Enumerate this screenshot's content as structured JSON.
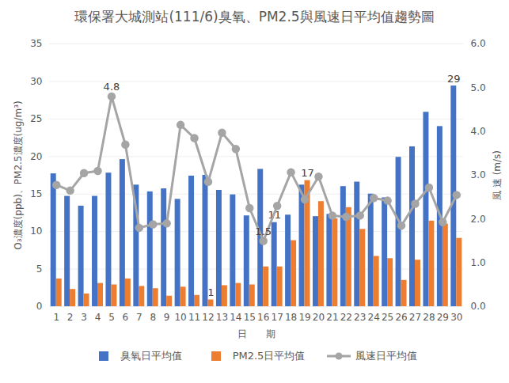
{
  "chart_data": {
    "type": "bar",
    "title": "環保署大城測站(111/6)臭氧、PM2.5與風速日平均值趨勢圖",
    "x_label": "日　　期",
    "y_label": "O₃濃度(ppb)、PM2.5濃度(ug/m³)",
    "y2_label": "風 速 (m/s)",
    "categories": [
      "1",
      "2",
      "3",
      "4",
      "5",
      "6",
      "7",
      "8",
      "9",
      "10",
      "11",
      "12",
      "13",
      "14",
      "15",
      "16",
      "17",
      "18",
      "19",
      "20",
      "21",
      "22",
      "23",
      "24",
      "25",
      "26",
      "27",
      "28",
      "29",
      "30"
    ],
    "ylim": [
      0,
      35
    ],
    "yticks": [
      0,
      5,
      10,
      15,
      20,
      25,
      30,
      35
    ],
    "y2lim": [
      0,
      6
    ],
    "y2ticks": [
      {
        "value": 0,
        "label": "0.0"
      },
      {
        "value": 1,
        "label": "1.0"
      },
      {
        "value": 2,
        "label": "2.0"
      },
      {
        "value": 3,
        "label": "3.0"
      },
      {
        "value": 4,
        "label": "4.0"
      },
      {
        "value": 5,
        "label": "5.0"
      },
      {
        "value": 6,
        "label": "6.0"
      }
    ],
    "grid": true,
    "legend": "bottom",
    "series": [
      {
        "name": "臭氧日平均值",
        "type": "bar",
        "color": "#4472c4",
        "values": [
          17.7,
          14.7,
          13.4,
          14.7,
          17.8,
          19.6,
          16.2,
          15.3,
          15.7,
          14.3,
          17.4,
          17.5,
          15.5,
          14.9,
          12.1,
          18.3,
          11.2,
          12.2,
          16.2,
          12.0,
          12.3,
          16.0,
          16.6,
          15.0,
          14.5,
          19.9,
          21.3,
          25.9,
          24.0,
          29.4
        ],
        "value_labels": [
          null,
          null,
          null,
          null,
          null,
          null,
          null,
          null,
          null,
          null,
          null,
          null,
          null,
          null,
          null,
          null,
          "11",
          null,
          null,
          null,
          null,
          null,
          null,
          null,
          null,
          null,
          null,
          null,
          null,
          "29"
        ]
      },
      {
        "name": "PM2.5日平均值",
        "type": "bar",
        "color": "#ed7d31",
        "values": [
          3.7,
          2.3,
          1.7,
          3.1,
          2.9,
          3.7,
          2.7,
          2.4,
          1.4,
          2.6,
          1.5,
          0.9,
          2.8,
          3.1,
          2.9,
          5.3,
          5.3,
          8.8,
          16.8,
          14.0,
          11.7,
          13.2,
          10.3,
          6.7,
          6.4,
          3.5,
          6.2,
          11.4,
          11.0,
          9.1
        ],
        "value_labels": [
          null,
          null,
          null,
          null,
          null,
          null,
          null,
          null,
          null,
          null,
          null,
          "1",
          null,
          null,
          null,
          null,
          null,
          null,
          "17",
          null,
          null,
          null,
          null,
          null,
          null,
          null,
          null,
          null,
          null,
          null
        ]
      },
      {
        "name": "風速日平均值",
        "type": "line",
        "axis": "y2",
        "color": "#a5a5a5",
        "marker": "circle",
        "values": [
          2.78,
          2.65,
          3.05,
          3.1,
          4.8,
          3.7,
          1.8,
          1.88,
          1.9,
          4.15,
          3.85,
          2.85,
          3.97,
          3.6,
          2.25,
          1.5,
          2.3,
          3.07,
          2.45,
          2.97,
          2.08,
          2.05,
          2.08,
          2.48,
          2.42,
          1.85,
          2.35,
          2.72,
          1.93,
          2.55
        ],
        "value_labels": [
          null,
          null,
          null,
          null,
          "4.8",
          null,
          null,
          null,
          null,
          null,
          null,
          null,
          null,
          null,
          null,
          "1.5",
          null,
          null,
          null,
          null,
          null,
          null,
          null,
          null,
          null,
          null,
          null,
          null,
          null,
          null
        ]
      }
    ]
  }
}
